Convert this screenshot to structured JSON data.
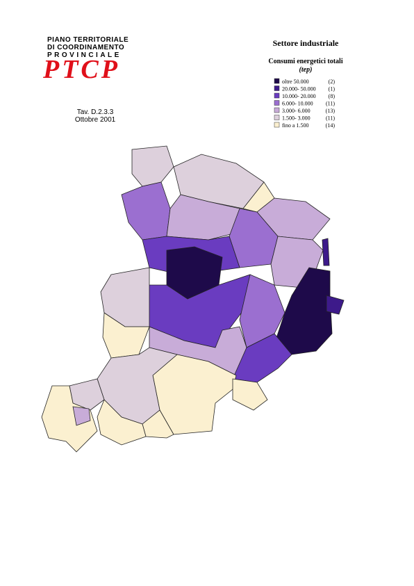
{
  "header": {
    "logo_lines": [
      "PIANO TERRITORIALE",
      "DI COORDINAMENTO",
      "PROVINCIALE"
    ],
    "logo_mark": "PTCP",
    "table_ref": "Tav. D.2.3.3",
    "date": "Ottobre 2001"
  },
  "legend": {
    "title": "Settore industriale",
    "subtitle": "Consumi energetici totali",
    "unit": "(tep)",
    "entries": [
      {
        "label": "oltre 50.000",
        "count": "(2)",
        "color": "#1e0a4a"
      },
      {
        "label": "20.000- 50.000",
        "count": "(1)",
        "color": "#3d1a8a"
      },
      {
        "label": "10.000- 20.000",
        "count": "(8)",
        "color": "#6a3cc0"
      },
      {
        "label": "6.000- 10.000",
        "count": "(11)",
        "color": "#9b6fd0"
      },
      {
        "label": "3.000- 6.000",
        "count": "(13)",
        "color": "#c8acd8"
      },
      {
        "label": "1.500- 3.000",
        "count": "(11)",
        "color": "#ddd0dc"
      },
      {
        "label": "fino a 1.500",
        "count": "(14)",
        "color": "#fbf0d0"
      }
    ]
  }
}
